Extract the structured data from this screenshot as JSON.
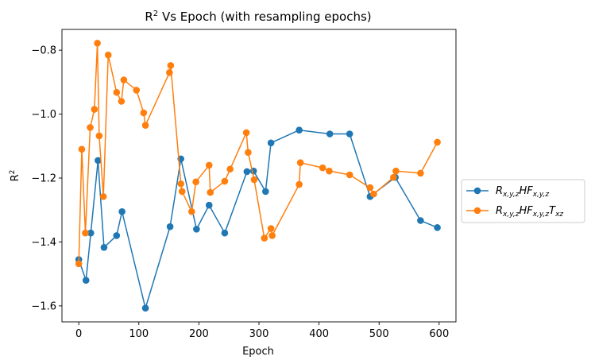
{
  "chart_data": {
    "type": "line",
    "title_main": "R",
    "title_sup": "2",
    "title_rest": " Vs Epoch (with resampling epochs)",
    "xlabel": "Epoch",
    "ylabel_main": "R",
    "ylabel_sup": "2",
    "xlim": [
      -28,
      628
    ],
    "ylim": [
      -1.65,
      -0.735
    ],
    "xticks": [
      0,
      100,
      200,
      300,
      400,
      500,
      600
    ],
    "yticks": [
      -1.6,
      -1.4,
      -1.2,
      -1.0,
      -0.8
    ],
    "ytick_labels": [
      "−1.6",
      "−1.4",
      "−1.2",
      "−1.0",
      "−0.8"
    ],
    "legend_position": "outside-right",
    "series": [
      {
        "name": "R_{x,y,z}HF_{x,y,z}",
        "legend_parts": [
          [
            "R",
            ""
          ],
          [
            "x,y,z",
            "sub"
          ],
          [
            "HF",
            ""
          ],
          [
            "x,y,z",
            "sub"
          ]
        ],
        "color": "#1f77b4",
        "points": [
          [
            0,
            -1.455
          ],
          [
            12,
            -1.52
          ],
          [
            20,
            -1.372
          ],
          [
            32,
            -1.145
          ],
          [
            42,
            -1.417
          ],
          [
            63,
            -1.38
          ],
          [
            72,
            -1.305
          ],
          [
            111,
            -1.607
          ],
          [
            152,
            -1.352
          ],
          [
            170,
            -1.14
          ],
          [
            196,
            -1.36
          ],
          [
            217,
            -1.285
          ],
          [
            243,
            -1.372
          ],
          [
            280,
            -1.18
          ],
          [
            291,
            -1.178
          ],
          [
            311,
            -1.242
          ],
          [
            320,
            -1.09
          ],
          [
            367,
            -1.05
          ],
          [
            418,
            -1.062
          ],
          [
            451,
            -1.062
          ],
          [
            485,
            -1.258
          ],
          [
            527,
            -1.198
          ],
          [
            569,
            -1.333
          ],
          [
            597,
            -1.355
          ]
        ]
      },
      {
        "name": "R_{x,y,z}HF_{x,y,z}T_{xz}",
        "legend_parts": [
          [
            "R",
            ""
          ],
          [
            "x,y,z",
            "sub"
          ],
          [
            "HF",
            ""
          ],
          [
            "x,y,z",
            "sub"
          ],
          [
            "T",
            ""
          ],
          [
            "xz",
            "sub"
          ]
        ],
        "color": "#ff7f0e",
        "points": [
          [
            0,
            -1.468
          ],
          [
            5,
            -1.11
          ],
          [
            11,
            -1.372
          ],
          [
            19,
            -1.042
          ],
          [
            26,
            -0.985
          ],
          [
            31,
            -0.778
          ],
          [
            34,
            -1.068
          ],
          [
            41,
            -1.258
          ],
          [
            49,
            -0.815
          ],
          [
            63,
            -0.932
          ],
          [
            71,
            -0.96
          ],
          [
            75,
            -0.893
          ],
          [
            96,
            -0.925
          ],
          [
            108,
            -0.996
          ],
          [
            111,
            -1.035
          ],
          [
            151,
            -0.87
          ],
          [
            153,
            -0.848
          ],
          [
            170,
            -1.218
          ],
          [
            172,
            -1.242
          ],
          [
            188,
            -1.305
          ],
          [
            195,
            -1.212
          ],
          [
            217,
            -1.16
          ],
          [
            219,
            -1.245
          ],
          [
            243,
            -1.21
          ],
          [
            252,
            -1.172
          ],
          [
            279,
            -1.058
          ],
          [
            282,
            -1.12
          ],
          [
            292,
            -1.205
          ],
          [
            309,
            -1.388
          ],
          [
            320,
            -1.358
          ],
          [
            322,
            -1.38
          ],
          [
            367,
            -1.22
          ],
          [
            369,
            -1.152
          ],
          [
            406,
            -1.168
          ],
          [
            417,
            -1.178
          ],
          [
            451,
            -1.19
          ],
          [
            485,
            -1.23
          ],
          [
            491,
            -1.25
          ],
          [
            524,
            -1.198
          ],
          [
            528,
            -1.178
          ],
          [
            569,
            -1.185
          ],
          [
            597,
            -1.088
          ]
        ]
      }
    ]
  }
}
